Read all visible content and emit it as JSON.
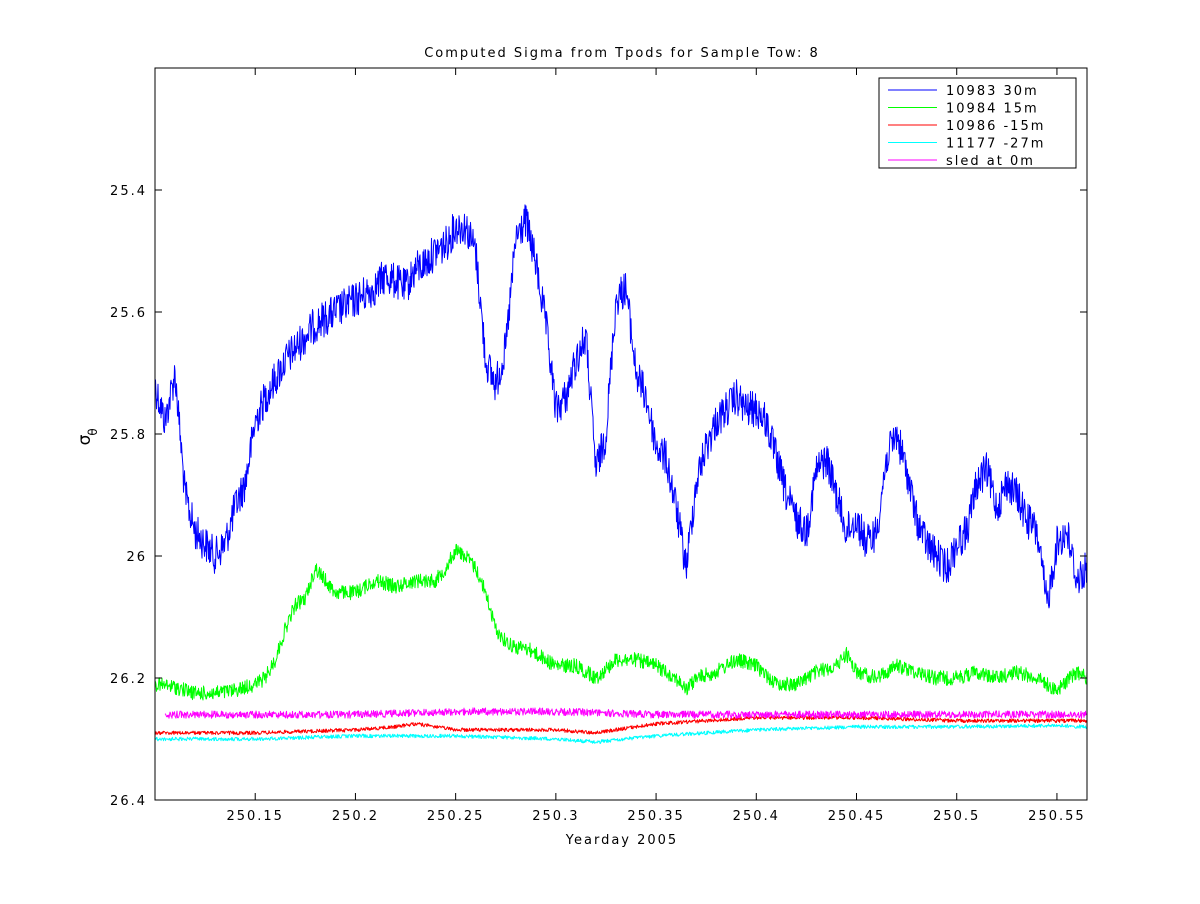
{
  "chart_data": {
    "type": "line",
    "title": "Computed Sigma from Tpods for Sample Tow: 8",
    "xlabel": "Yearday 2005",
    "ylabel_symbol": "σ",
    "ylabel_subscript": "θ",
    "xlim": [
      250.1,
      250.565
    ],
    "ylim": [
      25.2,
      26.4
    ],
    "y_reversed": true,
    "x_ticks": [
      250.15,
      250.2,
      250.25,
      250.3,
      250.35,
      250.4,
      250.45,
      250.5,
      250.55
    ],
    "x_tick_labels": [
      "250.15",
      "250.2",
      "250.25",
      "250.3",
      "250.35",
      "250.4",
      "250.45",
      "250.5",
      "250.55"
    ],
    "y_ticks": [
      25.4,
      25.6,
      25.8,
      26.0,
      26.2,
      26.4
    ],
    "y_tick_labels": [
      "25.4",
      "25.6",
      "25.8",
      "26",
      "26.2",
      "26.4"
    ],
    "grid": false,
    "legend_position": "top-right",
    "series": [
      {
        "name": "10983 30m",
        "color": "#0000ff",
        "noise": 0.03,
        "x": [
          250.1,
          250.105,
          250.11,
          250.115,
          250.12,
          250.125,
          250.13,
          250.135,
          250.14,
          250.145,
          250.15,
          250.155,
          250.16,
          250.165,
          250.17,
          250.175,
          250.18,
          250.185,
          250.19,
          250.195,
          250.2,
          250.205,
          250.21,
          250.215,
          250.22,
          250.225,
          250.23,
          250.235,
          250.24,
          250.245,
          250.25,
          250.255,
          250.26,
          250.265,
          250.27,
          250.275,
          250.28,
          250.285,
          250.29,
          250.295,
          250.3,
          250.305,
          250.31,
          250.315,
          250.32,
          250.325,
          250.33,
          250.335,
          250.34,
          250.345,
          250.35,
          250.355,
          250.36,
          250.365,
          250.37,
          250.375,
          250.38,
          250.385,
          250.39,
          250.395,
          250.4,
          250.405,
          250.41,
          250.415,
          250.42,
          250.425,
          250.43,
          250.435,
          250.44,
          250.445,
          250.45,
          250.455,
          250.46,
          250.465,
          250.47,
          250.475,
          250.48,
          250.485,
          250.49,
          250.495,
          250.5,
          250.505,
          250.51,
          250.515,
          250.52,
          250.525,
          250.53,
          250.535,
          250.54,
          250.545,
          250.55,
          250.555,
          250.56,
          250.565
        ],
        "values": [
          25.72,
          25.78,
          25.7,
          25.9,
          25.96,
          25.98,
          26.0,
          25.98,
          25.92,
          25.88,
          25.78,
          25.74,
          25.71,
          25.68,
          25.66,
          25.64,
          25.62,
          25.61,
          25.6,
          25.59,
          25.58,
          25.57,
          25.56,
          25.54,
          25.55,
          25.56,
          25.53,
          25.52,
          25.5,
          25.49,
          25.46,
          25.46,
          25.5,
          25.68,
          25.72,
          25.66,
          25.48,
          25.45,
          25.52,
          25.62,
          25.76,
          25.74,
          25.68,
          25.64,
          25.86,
          25.8,
          25.58,
          25.56,
          25.7,
          25.74,
          25.82,
          25.84,
          25.92,
          26.02,
          25.88,
          25.82,
          25.78,
          25.76,
          25.74,
          25.76,
          25.76,
          25.78,
          25.84,
          25.9,
          25.94,
          25.96,
          25.86,
          25.84,
          25.9,
          25.96,
          25.94,
          25.98,
          25.96,
          25.84,
          25.8,
          25.86,
          25.94,
          25.98,
          26.0,
          26.02,
          25.98,
          25.96,
          25.88,
          25.86,
          25.92,
          25.88,
          25.9,
          25.94,
          25.96,
          26.08,
          25.98,
          25.96,
          26.04,
          26.02
        ]
      },
      {
        "name": "10984 15m",
        "color": "#00ff00",
        "noise": 0.012,
        "x": [
          250.1,
          250.11,
          250.12,
          250.13,
          250.14,
          250.15,
          250.155,
          250.16,
          250.165,
          250.17,
          250.175,
          250.18,
          250.185,
          250.19,
          250.2,
          250.21,
          250.22,
          250.23,
          250.24,
          250.245,
          250.25,
          250.255,
          250.26,
          250.265,
          250.27,
          250.275,
          250.28,
          250.285,
          250.29,
          250.3,
          250.31,
          250.32,
          250.33,
          250.34,
          250.35,
          250.36,
          250.365,
          250.37,
          250.38,
          250.39,
          250.4,
          250.41,
          250.42,
          250.43,
          250.44,
          250.445,
          250.45,
          250.46,
          250.47,
          250.48,
          250.49,
          250.5,
          250.51,
          250.52,
          250.53,
          250.54,
          250.55,
          250.56,
          250.565
        ],
        "values": [
          26.21,
          26.215,
          26.225,
          26.225,
          26.22,
          26.21,
          26.2,
          26.17,
          26.12,
          26.08,
          26.07,
          26.02,
          26.04,
          26.06,
          26.06,
          26.04,
          26.05,
          26.04,
          26.04,
          26.02,
          25.99,
          26.0,
          26.02,
          26.06,
          26.12,
          26.14,
          26.15,
          26.15,
          26.16,
          26.18,
          26.18,
          26.2,
          26.17,
          26.17,
          26.18,
          26.2,
          26.22,
          26.2,
          26.19,
          26.17,
          26.18,
          26.21,
          26.21,
          26.19,
          26.18,
          26.16,
          26.19,
          26.2,
          26.18,
          26.19,
          26.2,
          26.2,
          26.19,
          26.2,
          26.19,
          26.2,
          26.22,
          26.19,
          26.2
        ]
      },
      {
        "name": "10986 -15m",
        "color": "#ff0000",
        "noise": 0.003,
        "x": [
          250.1,
          250.15,
          250.2,
          250.22,
          250.23,
          250.25,
          250.3,
          250.32,
          250.35,
          250.4,
          250.45,
          250.5,
          250.55,
          250.565
        ],
        "values": [
          26.29,
          26.29,
          26.285,
          26.28,
          26.275,
          26.285,
          26.285,
          26.29,
          26.275,
          26.265,
          26.265,
          26.27,
          26.27,
          26.27
        ]
      },
      {
        "name": "11177 -27m",
        "color": "#00ffff",
        "noise": 0.003,
        "x": [
          250.1,
          250.15,
          250.2,
          250.25,
          250.3,
          250.32,
          250.35,
          250.4,
          250.45,
          250.5,
          250.55,
          250.565
        ],
        "values": [
          26.3,
          26.3,
          26.295,
          26.295,
          26.3,
          26.305,
          26.295,
          26.285,
          26.28,
          26.28,
          26.278,
          26.28
        ]
      },
      {
        "name": "sled at 0m",
        "color": "#ff00ff",
        "noise": 0.006,
        "x": [
          250.105,
          250.15,
          250.2,
          250.25,
          250.3,
          250.35,
          250.4,
          250.45,
          250.5,
          250.55,
          250.565
        ],
        "values": [
          26.26,
          26.26,
          26.26,
          26.255,
          26.255,
          26.26,
          26.26,
          26.26,
          26.26,
          26.26,
          26.26
        ]
      }
    ]
  }
}
